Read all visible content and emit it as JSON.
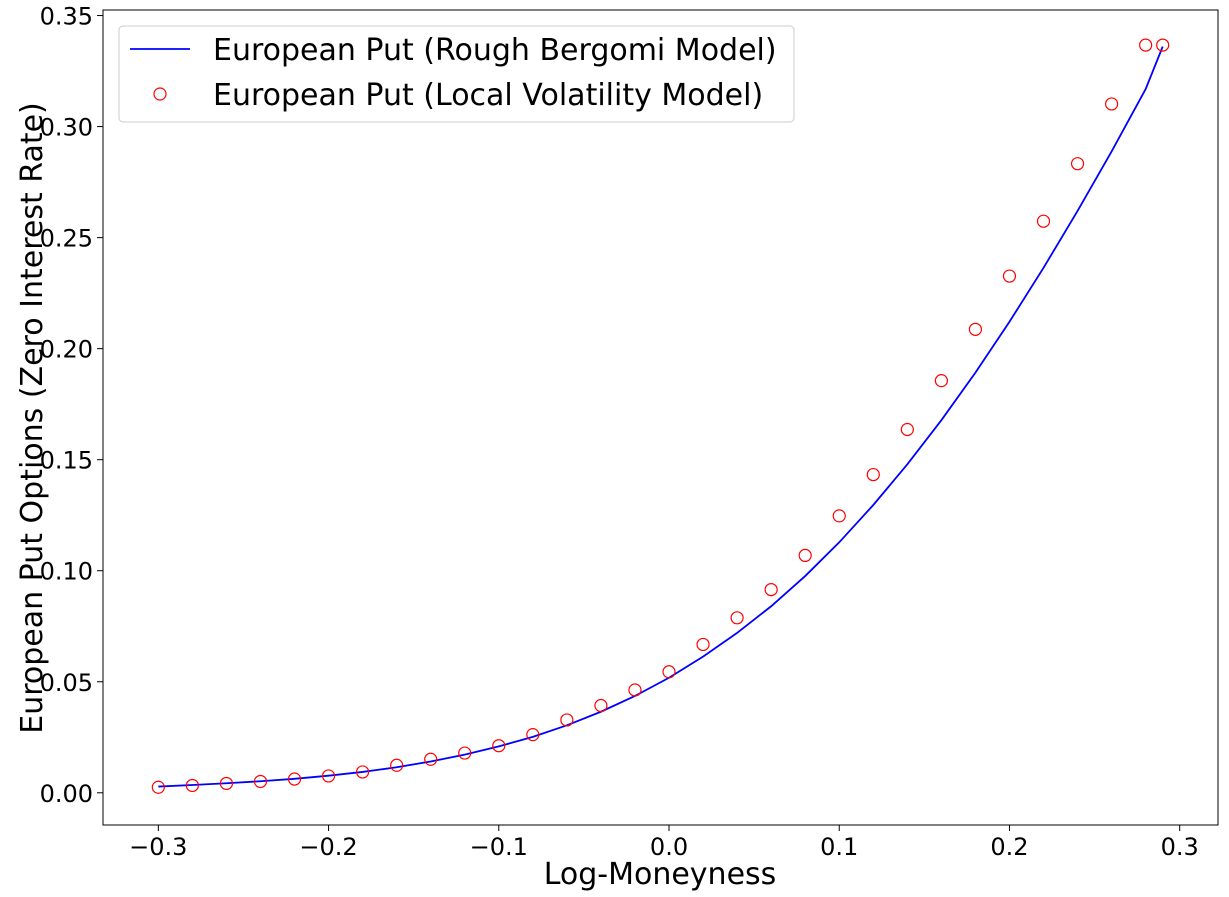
{
  "chart_data": {
    "type": "line",
    "xlabel": "Log-Moneyness",
    "ylabel": "European Put Options (Zero Interest Rate)",
    "xlim": [
      -0.3325,
      0.3225
    ],
    "ylim": [
      -0.0145,
      0.3525
    ],
    "xticks": [
      -0.3,
      -0.2,
      -0.1,
      0.0,
      0.1,
      0.2,
      0.3
    ],
    "xtick_labels": [
      "−0.3",
      "−0.2",
      "−0.1",
      "0.0",
      "0.1",
      "0.2",
      "0.3"
    ],
    "yticks": [
      0.0,
      0.05,
      0.1,
      0.15,
      0.2,
      0.25,
      0.3,
      0.35
    ],
    "ytick_labels": [
      "0.00",
      "0.05",
      "0.10",
      "0.15",
      "0.20",
      "0.25",
      "0.30",
      "0.35"
    ],
    "grid": false,
    "legend_position": "upper-left",
    "series": [
      {
        "name": "European Put (Rough Bergomi Model)",
        "style": "line",
        "color": "#0000ff",
        "x": [
          -0.3,
          -0.28,
          -0.26,
          -0.24,
          -0.22,
          -0.2,
          -0.18,
          -0.16,
          -0.14,
          -0.12,
          -0.1,
          -0.08,
          -0.06,
          -0.04,
          -0.02,
          0.0,
          0.02,
          0.04,
          0.06,
          0.08,
          0.1,
          0.12,
          0.14,
          0.16,
          0.18,
          0.2,
          0.22,
          0.24,
          0.26,
          0.28,
          0.29
        ],
        "y": [
          0.0028,
          0.0035,
          0.0043,
          0.0052,
          0.0063,
          0.0077,
          0.0094,
          0.0115,
          0.0141,
          0.0172,
          0.0209,
          0.0252,
          0.0304,
          0.0365,
          0.0436,
          0.0518,
          0.0613,
          0.072,
          0.084,
          0.0976,
          0.1128,
          0.1296,
          0.1479,
          0.1678,
          0.1892,
          0.2121,
          0.2364,
          0.262,
          0.2888,
          0.3169,
          0.336
        ]
      },
      {
        "name": "European Put (Local Volatility Model)",
        "style": "markers",
        "color": "#ff0000",
        "marker": "circle-open",
        "x": [
          -0.3,
          -0.28,
          -0.26,
          -0.24,
          -0.22,
          -0.2,
          -0.18,
          -0.16,
          -0.14,
          -0.12,
          -0.1,
          -0.08,
          -0.06,
          -0.04,
          -0.02,
          0.0,
          0.02,
          0.04,
          0.06,
          0.08,
          0.1,
          0.12,
          0.14,
          0.16,
          0.18,
          0.2,
          0.22,
          0.24,
          0.26,
          0.28,
          0.29
        ],
        "y": [
          0.0025,
          0.0033,
          0.0042,
          0.0051,
          0.0062,
          0.0076,
          0.0094,
          0.0124,
          0.0151,
          0.0179,
          0.0212,
          0.0262,
          0.0328,
          0.0393,
          0.0463,
          0.0545,
          0.0668,
          0.0788,
          0.0915,
          0.1069,
          0.1247,
          0.1433,
          0.1636,
          0.1856,
          0.2087,
          0.2327,
          0.2574,
          0.2833,
          0.3102,
          0.3367,
          0.3367
        ]
      }
    ]
  }
}
